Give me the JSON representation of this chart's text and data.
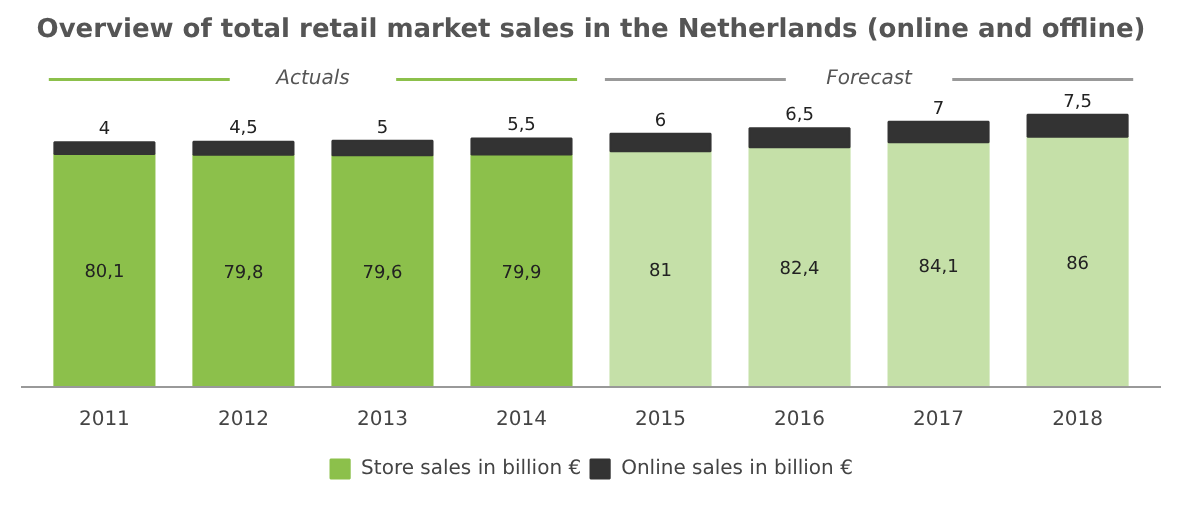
{
  "chart_data": {
    "type": "bar",
    "title": "Overview of total retail market sales in the Netherlands (online and offline)",
    "categories": [
      "2011",
      "2012",
      "2013",
      "2014",
      "2015",
      "2016",
      "2017",
      "2018"
    ],
    "stacked": true,
    "legend": "bottom",
    "series": [
      {
        "name": "Store sales in billion €",
        "color": "#8cc04b",
        "colors": [
          "#8cc04b",
          "#8cc04b",
          "#8cc04b",
          "#8cc04b",
          "#c5e0a8",
          "#c5e0a8",
          "#c5e0a8",
          "#c5e0a8"
        ],
        "values": [
          80.1,
          79.8,
          79.6,
          79.9,
          81,
          82.4,
          84.1,
          86
        ],
        "value_labels": [
          "80,1",
          "79,8",
          "79,6",
          "79,9",
          "81",
          "82,4",
          "84,1",
          "86"
        ]
      },
      {
        "name": "Online sales in billion €",
        "color": "#333333",
        "values": [
          4,
          4.5,
          5,
          5.5,
          6,
          6.5,
          7,
          7.5
        ],
        "value_labels": [
          "4",
          "4,5",
          "5",
          "5,5",
          "6",
          "6,5",
          "7",
          "7,5"
        ]
      }
    ],
    "annotations": [
      "Actuals",
      "Forecast"
    ]
  }
}
